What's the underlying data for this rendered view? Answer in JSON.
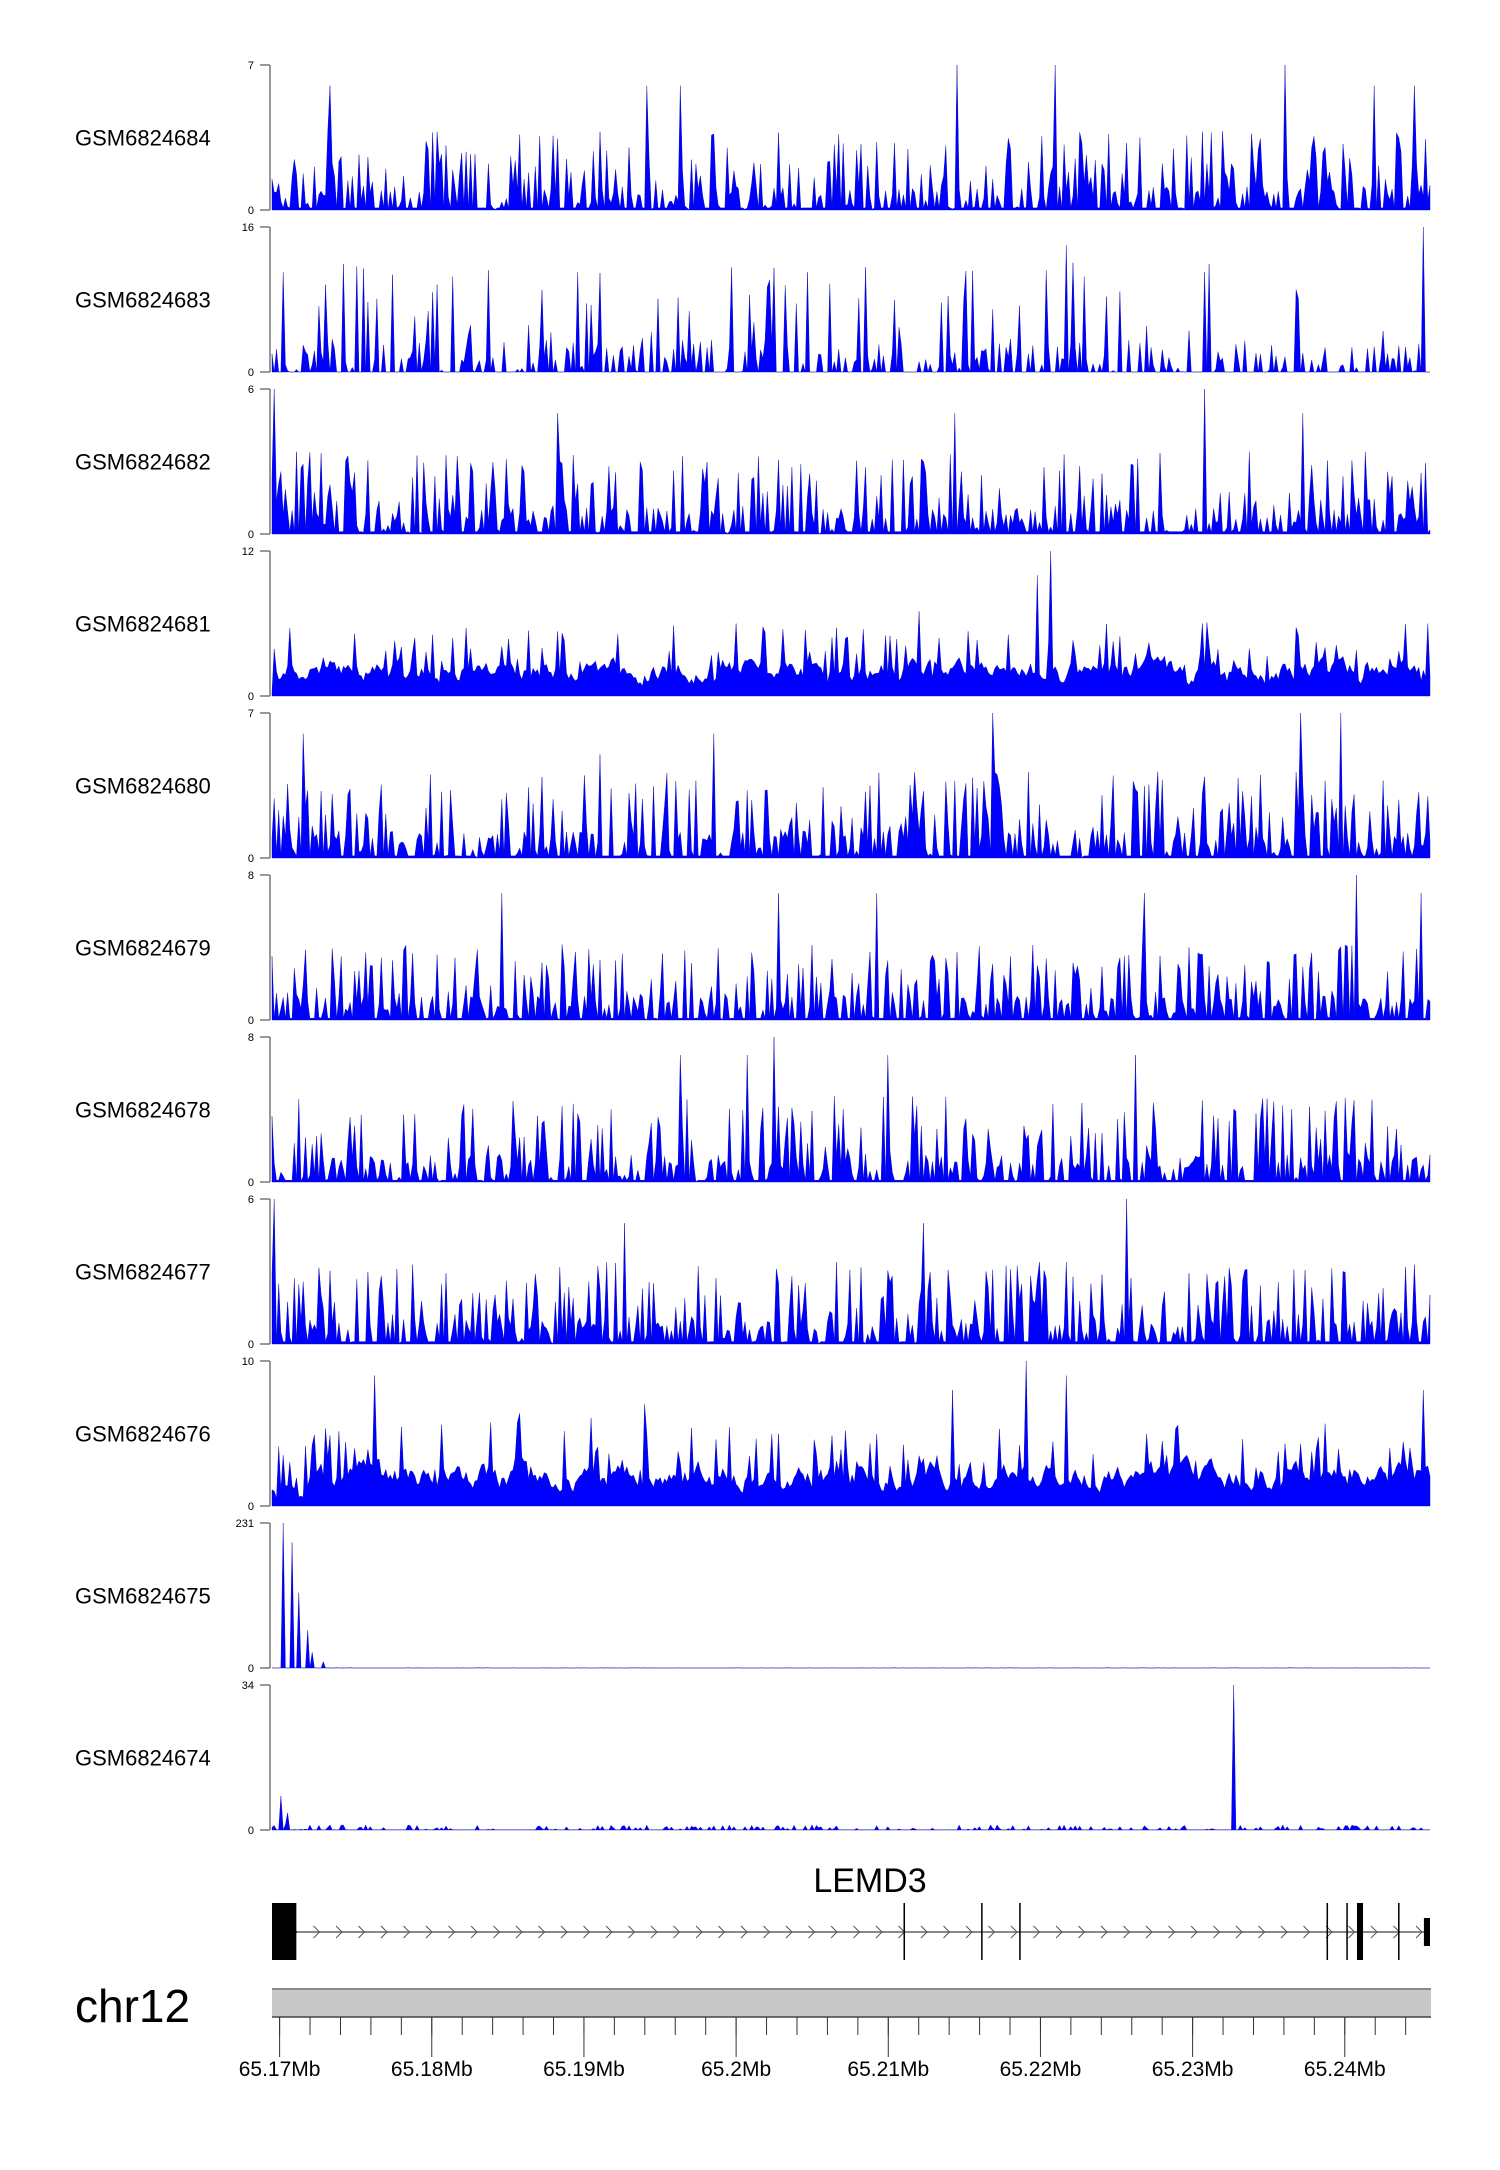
{
  "chart_data": {
    "type": "area",
    "title": "",
    "xlabel": "",
    "chromosome": "chr12",
    "xlim_mb": [
      65.1695,
      65.2456
    ],
    "x_tick_labels": [
      "65.17Mb",
      "65.18Mb",
      "65.19Mb",
      "65.2Mb",
      "65.21Mb",
      "65.22Mb",
      "65.23Mb",
      "65.24Mb"
    ],
    "x_ticks_mb": [
      65.17,
      65.18,
      65.19,
      65.2,
      65.21,
      65.22,
      65.23,
      65.24
    ],
    "minor_tick_step_mb": 0.002,
    "signal_color": "#0000ff",
    "tracks": [
      {
        "name": "GSM6824684",
        "ylim": [
          0,
          7
        ],
        "bg": 2.0,
        "seed": 11,
        "peaks": [
          [
            65.2145,
            7
          ],
          [
            65.2209,
            7
          ],
          [
            65.2361,
            7
          ],
          [
            65.1733,
            6
          ],
          [
            65.1942,
            6
          ],
          [
            65.1963,
            6
          ],
          [
            65.2446,
            6
          ],
          [
            65.2419,
            6
          ]
        ]
      },
      {
        "name": "GSM6824683",
        "ylim": [
          0,
          16
        ],
        "bg": 3.5,
        "seed": 23,
        "sparse": true,
        "peaks": [
          [
            65.2452,
            16
          ],
          [
            65.2217,
            14
          ],
          [
            65.1703,
            11
          ],
          [
            65.2047,
            11
          ],
          [
            65.1896,
            11
          ],
          [
            65.2308,
            11
          ]
        ]
      },
      {
        "name": "GSM6824682",
        "ylim": [
          0,
          6
        ],
        "bg": 1.8,
        "seed": 37,
        "peaks": [
          [
            65.2308,
            6
          ],
          [
            65.1697,
            6
          ],
          [
            65.1883,
            5
          ],
          [
            65.2143,
            5
          ],
          [
            65.2373,
            5
          ]
        ]
      },
      {
        "name": "GSM6824681",
        "ylim": [
          0,
          12
        ],
        "bg": 3.0,
        "seed": 41,
        "broad": true,
        "peaks": [
          [
            65.2207,
            12
          ],
          [
            65.2198,
            10
          ],
          [
            65.212,
            7
          ],
          [
            65.2454,
            6
          ]
        ]
      },
      {
        "name": "GSM6824680",
        "ylim": [
          0,
          7
        ],
        "bg": 2.2,
        "seed": 53,
        "peaks": [
          [
            65.2169,
            7
          ],
          [
            65.2371,
            7
          ],
          [
            65.2397,
            7
          ],
          [
            65.1716,
            6
          ],
          [
            65.1911,
            5
          ],
          [
            65.1985,
            6
          ]
        ]
      },
      {
        "name": "GSM6824679",
        "ylim": [
          0,
          8
        ],
        "bg": 2.2,
        "seed": 61,
        "peaks": [
          [
            65.2408,
            8
          ],
          [
            65.1846,
            7
          ],
          [
            65.2028,
            7
          ],
          [
            65.2093,
            7
          ],
          [
            65.245,
            7
          ],
          [
            65.2269,
            7
          ]
        ]
      },
      {
        "name": "GSM6824678",
        "ylim": [
          0,
          8
        ],
        "bg": 2.5,
        "seed": 71,
        "peaks": [
          [
            65.2025,
            8
          ],
          [
            65.2008,
            7
          ],
          [
            65.21,
            7
          ],
          [
            65.2262,
            7
          ],
          [
            65.1964,
            7
          ]
        ]
      },
      {
        "name": "GSM6824677",
        "ylim": [
          0,
          6
        ],
        "bg": 1.8,
        "seed": 83,
        "peaks": [
          [
            65.2257,
            6
          ],
          [
            65.1696,
            6
          ],
          [
            65.2123,
            5
          ],
          [
            65.1927,
            5
          ]
        ]
      },
      {
        "name": "GSM6824676",
        "ylim": [
          0,
          10
        ],
        "bg": 2.8,
        "seed": 97,
        "broad": true,
        "peaks": [
          [
            65.2191,
            10
          ],
          [
            65.1762,
            9
          ],
          [
            65.2217,
            9
          ],
          [
            65.2452,
            8
          ],
          [
            65.2142,
            8
          ],
          [
            65.194,
            7
          ]
        ]
      },
      {
        "name": "GSM6824675",
        "ylim": [
          0,
          231
        ],
        "bg": 0.6,
        "seed": 101,
        "low": true,
        "peaks": [
          [
            65.1702,
            231
          ],
          [
            65.1708,
            200
          ],
          [
            65.1713,
            120
          ],
          [
            65.1718,
            60
          ],
          [
            65.1722,
            25
          ],
          [
            65.1728,
            10
          ]
        ]
      },
      {
        "name": "GSM6824674",
        "ylim": [
          0,
          34
        ],
        "bg": 1.2,
        "seed": 113,
        "low": true,
        "peaks": [
          [
            65.2327,
            34
          ],
          [
            65.1701,
            8
          ],
          [
            65.1705,
            4
          ]
        ]
      }
    ],
    "gene": {
      "name": "LEMD3",
      "strand": "+",
      "exons_mb": [
        [
          65.1695,
          65.1711
        ],
        [
          65.211,
          65.2111
        ],
        [
          65.2161,
          65.2162
        ],
        [
          65.2186,
          65.2187
        ],
        [
          65.2388,
          65.2389
        ],
        [
          65.2401,
          65.2402
        ],
        [
          65.2408,
          65.2412
        ],
        [
          65.2435,
          65.2436
        ],
        [
          65.2452,
          65.2456
        ]
      ]
    }
  }
}
